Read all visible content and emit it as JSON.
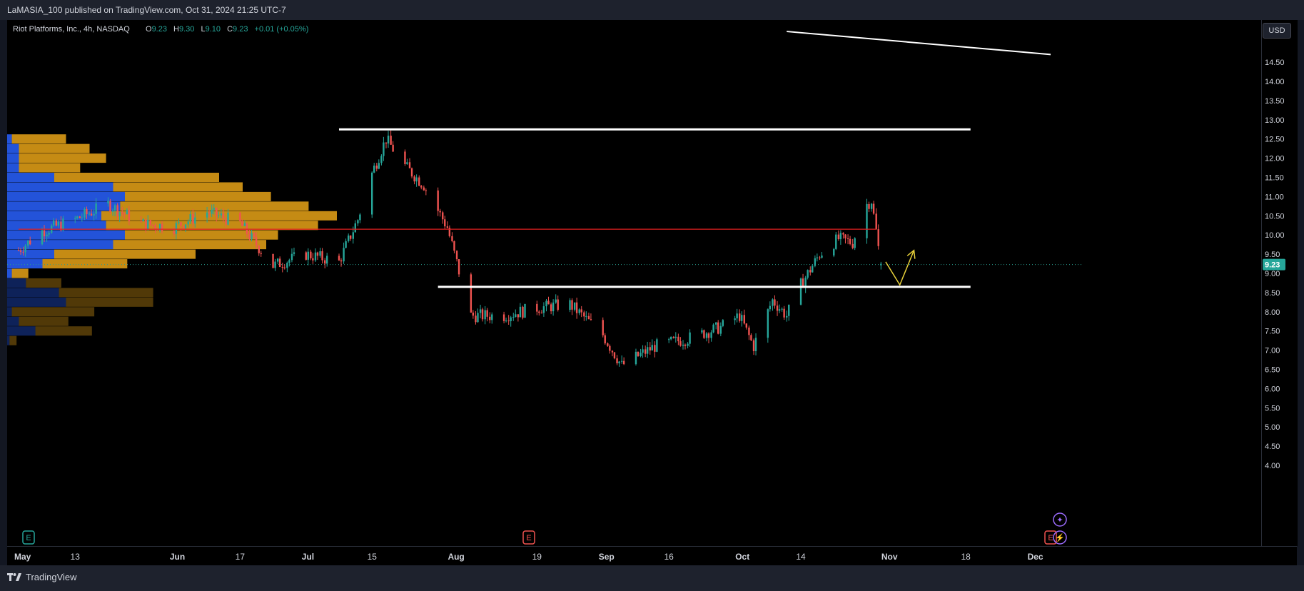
{
  "header": {
    "published": "LaMASIA_100 published on TradingView.com, Oct 31, 2024 21:25 UTC-7"
  },
  "footer": {
    "brand": "TradingView"
  },
  "legend": {
    "symbol": "Riot Platforms, Inc., 4h, NASDAQ",
    "o_label": "O",
    "o_value": "9.23",
    "h_label": "H",
    "h_value": "9.30",
    "l_label": "L",
    "l_value": "9.10",
    "c_label": "C",
    "c_value": "9.23",
    "change": "+0.01 (+0.05%)"
  },
  "price_scale": {
    "currency": "USD",
    "ticks": [
      "14.50",
      "14.00",
      "13.50",
      "13.00",
      "12.50",
      "12.00",
      "11.50",
      "11.00",
      "10.50",
      "10.00",
      "9.50",
      "9.00",
      "8.50",
      "8.00",
      "7.50",
      "7.00",
      "6.50",
      "6.00",
      "5.50",
      "5.00",
      "4.50",
      "4.00"
    ],
    "current_price": "9.23"
  },
  "time_axis": {
    "labels": [
      "May",
      "13",
      "Jun",
      "17",
      "Jul",
      "15",
      "Aug",
      "19",
      "Sep",
      "16",
      "Oct",
      "14",
      "Nov",
      "18",
      "Dec"
    ]
  },
  "events": {
    "earnings": "E",
    "dividend": "⚡",
    "split": "✦"
  },
  "colors": {
    "up": "#26a69a",
    "down": "#f05350",
    "profile_up": "#2962ff",
    "profile_down": "#e8a317",
    "background": "#000000"
  },
  "chart_data": {
    "type": "candlestick",
    "title": "Riot Platforms, Inc., 4h, NASDAQ",
    "timeframe": "4h",
    "x_range": [
      "2024-05-01",
      "2024-12-06"
    ],
    "ylim": [
      3.5,
      15.0
    ],
    "last": {
      "open": 9.23,
      "high": 9.3,
      "low": 9.1,
      "close": 9.23,
      "change": 0.01,
      "change_pct": 0.05
    },
    "price_path": [
      [
        "2024-05-01",
        9.6
      ],
      [
        "2024-05-06",
        10.1
      ],
      [
        "2024-05-13",
        10.4
      ],
      [
        "2024-05-20",
        10.8
      ],
      [
        "2024-05-27",
        10.3
      ],
      [
        "2024-06-03",
        10.2
      ],
      [
        "2024-06-10",
        10.6
      ],
      [
        "2024-06-17",
        10.3
      ],
      [
        "2024-06-24",
        9.2
      ],
      [
        "2024-07-01",
        9.5
      ],
      [
        "2024-07-08",
        9.3
      ],
      [
        "2024-07-12",
        10.4
      ],
      [
        "2024-07-15",
        11.6
      ],
      [
        "2024-07-18",
        12.5
      ],
      [
        "2024-07-22",
        11.8
      ],
      [
        "2024-07-26",
        11.3
      ],
      [
        "2024-07-31",
        10.2
      ],
      [
        "2024-08-05",
        7.9
      ],
      [
        "2024-08-12",
        7.9
      ],
      [
        "2024-08-19",
        8.1
      ],
      [
        "2024-08-26",
        8.2
      ],
      [
        "2024-09-02",
        7.4
      ],
      [
        "2024-09-06",
        6.6
      ],
      [
        "2024-09-13",
        7.1
      ],
      [
        "2024-09-20",
        7.3
      ],
      [
        "2024-09-27",
        7.6
      ],
      [
        "2024-10-01",
        7.9
      ],
      [
        "2024-10-04",
        7.1
      ],
      [
        "2024-10-08",
        8.3
      ],
      [
        "2024-10-11",
        7.9
      ],
      [
        "2024-10-14",
        8.7
      ],
      [
        "2024-10-18",
        9.5
      ],
      [
        "2024-10-22",
        9.9
      ],
      [
        "2024-10-25",
        9.8
      ],
      [
        "2024-10-28",
        10.8
      ],
      [
        "2024-10-29",
        10.9
      ],
      [
        "2024-10-30",
        10.1
      ],
      [
        "2024-10-31",
        9.23
      ]
    ],
    "drawings": {
      "resistance_line": {
        "price": 12.75,
        "from": "2024-07-08",
        "to": "2024-11-19"
      },
      "support_line": {
        "price": 8.65,
        "from": "2024-07-29",
        "to": "2024-11-19"
      },
      "pivot_line": {
        "price": 10.15,
        "from": "2024-05-01",
        "to": "2024-10-30"
      },
      "downtrend_line": {
        "from": [
          "2024-10-11",
          15.3
        ],
        "to": [
          "2024-12-06",
          14.7
        ]
      },
      "projection_arrow": [
        [
          "2024-11-01",
          9.3
        ],
        [
          "2024-11-04",
          8.7
        ],
        [
          "2024-11-07",
          9.6
        ]
      ]
    },
    "volume_profile": [
      {
        "price": 12.5,
        "up": 0.02,
        "down": 0.23
      },
      {
        "price": 12.25,
        "up": 0.05,
        "down": 0.3
      },
      {
        "price": 12.0,
        "up": 0.05,
        "down": 0.37
      },
      {
        "price": 11.75,
        "up": 0.05,
        "down": 0.26
      },
      {
        "price": 11.5,
        "up": 0.2,
        "down": 0.7
      },
      {
        "price": 11.25,
        "up": 0.45,
        "down": 0.55
      },
      {
        "price": 11.0,
        "up": 0.5,
        "down": 0.62
      },
      {
        "price": 10.75,
        "up": 0.48,
        "down": 0.8
      },
      {
        "price": 10.5,
        "up": 0.4,
        "down": 1.0
      },
      {
        "price": 10.25,
        "up": 0.42,
        "down": 0.9
      },
      {
        "price": 10.0,
        "up": 0.5,
        "down": 0.65
      },
      {
        "price": 9.75,
        "up": 0.45,
        "down": 0.65
      },
      {
        "price": 9.5,
        "up": 0.2,
        "down": 0.6
      },
      {
        "price": 9.25,
        "up": 0.15,
        "down": 0.36
      },
      {
        "price": 9.0,
        "up": 0.02,
        "down": 0.07
      },
      {
        "price": 8.75,
        "up": 0.08,
        "down": 0.15
      },
      {
        "price": 8.5,
        "up": 0.22,
        "down": 0.4
      },
      {
        "price": 8.25,
        "up": 0.25,
        "down": 0.37
      },
      {
        "price": 8.0,
        "up": 0.02,
        "down": 0.35
      },
      {
        "price": 7.75,
        "up": 0.05,
        "down": 0.21
      },
      {
        "price": 7.5,
        "up": 0.12,
        "down": 0.24
      },
      {
        "price": 7.25,
        "up": 0.01,
        "down": 0.03
      }
    ]
  }
}
